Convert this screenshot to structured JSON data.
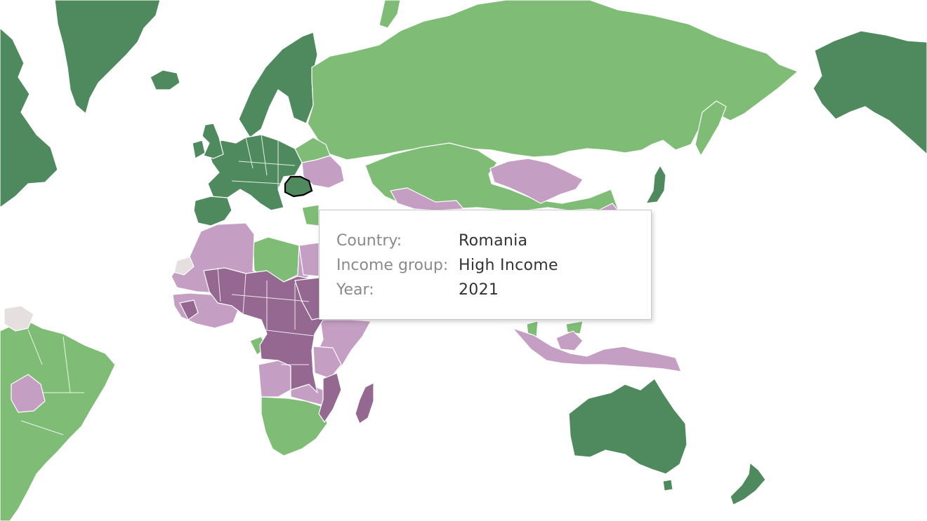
{
  "colors": {
    "high_income": "#4e8a5e",
    "upper_middle_income": "#7fbd77",
    "lower_middle_income": "#c59ec3",
    "low_income": "#956892",
    "no_data": "#e6dfdf",
    "water": "#ffffff",
    "border": "#ffffff",
    "selected_outline": "#000000"
  },
  "tooltip": {
    "rows": [
      {
        "label": "Country:",
        "value": "Romania"
      },
      {
        "label": "Income group:",
        "value": "High Income"
      },
      {
        "label": "Year:",
        "value": "2021"
      }
    ]
  },
  "map": {
    "selected_country": "Romania",
    "regions": [
      {
        "name": "Greenland",
        "group": "high_income"
      },
      {
        "name": "North America (east)",
        "group": "high_income"
      },
      {
        "name": "Iceland",
        "group": "high_income"
      },
      {
        "name": "Scandinavia",
        "group": "high_income"
      },
      {
        "name": "Western Europe",
        "group": "high_income"
      },
      {
        "name": "Iberia",
        "group": "high_income"
      },
      {
        "name": "Romania",
        "group": "high_income"
      },
      {
        "name": "Alaska / North America (west)",
        "group": "high_income"
      },
      {
        "name": "Australia",
        "group": "high_income"
      },
      {
        "name": "New Zealand",
        "group": "high_income"
      },
      {
        "name": "Japan",
        "group": "high_income"
      },
      {
        "name": "Russia",
        "group": "upper_middle_income"
      },
      {
        "name": "Kazakhstan / China",
        "group": "upper_middle_income"
      },
      {
        "name": "Belarus / Baltics region",
        "group": "upper_middle_income"
      },
      {
        "name": "Libya",
        "group": "upper_middle_income"
      },
      {
        "name": "Southern Africa",
        "group": "upper_middle_income"
      },
      {
        "name": "South America",
        "group": "upper_middle_income"
      },
      {
        "name": "Mongolia",
        "group": "lower_middle_income"
      },
      {
        "name": "Ukraine",
        "group": "lower_middle_income"
      },
      {
        "name": "North Africa / Sahel",
        "group": "lower_middle_income"
      },
      {
        "name": "West Africa coast",
        "group": "lower_middle_income"
      },
      {
        "name": "East Africa",
        "group": "lower_middle_income"
      },
      {
        "name": "Angola",
        "group": "lower_middle_income"
      },
      {
        "name": "Bolivia",
        "group": "lower_middle_income"
      },
      {
        "name": "Indonesia / Papua",
        "group": "lower_middle_income"
      },
      {
        "name": "Central Asia south",
        "group": "lower_middle_income"
      },
      {
        "name": "Central Africa / Sahel interior",
        "group": "low_income"
      },
      {
        "name": "Madagascar",
        "group": "low_income"
      },
      {
        "name": "Western Sahara",
        "group": "no_data"
      },
      {
        "name": "Venezuela",
        "group": "no_data"
      }
    ]
  }
}
